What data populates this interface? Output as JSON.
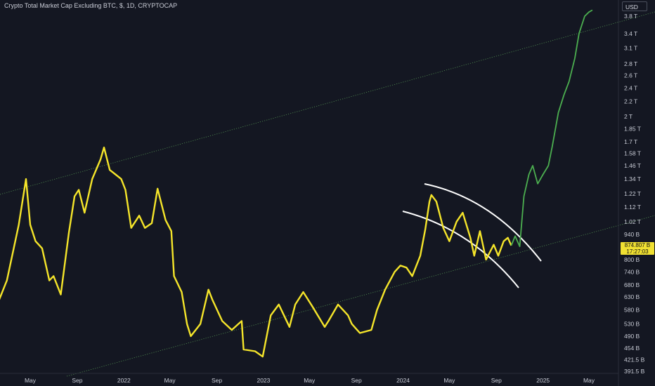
{
  "header": {
    "title": "Crypto Total Market Cap Excluding BTC, $, 1D, CRYPTOCAP",
    "currency": "USD"
  },
  "price_tag": {
    "value": "874.807 B",
    "countdown": "17:27:03"
  },
  "colors": {
    "background": "#141722",
    "price_yellow": "#f5e52a",
    "price_green": "#4caf50",
    "channel_line": "#ffffff",
    "trend_dotted": "#4a7a4a",
    "axis_text": "#c9ccd6"
  },
  "chart_data": {
    "type": "line",
    "title": "Crypto Total Market Cap Excluding BTC, $, 1D, CRYPTOCAP",
    "y_scale": "log",
    "y_unit": "USD",
    "y_ticks": [
      "3.8 T",
      "3.4 T",
      "3.1 T",
      "2.8 T",
      "2.6 T",
      "2.4 T",
      "2.2 T",
      "2 T",
      "1.85 T",
      "1.7 T",
      "1.58 T",
      "1.46 T",
      "1.34 T",
      "1.22 T",
      "1.12 T",
      "1.02 T",
      "940 B",
      "800 B",
      "740 B",
      "680 B",
      "630 B",
      "580 B",
      "530 B",
      "490 B",
      "454 B",
      "421.5 B",
      "391.5 B"
    ],
    "x_ticks": [
      "May",
      "Sep",
      "2022",
      "May",
      "Sep",
      "2023",
      "May",
      "Sep",
      "2024",
      "May",
      "Sep",
      "2025",
      "May"
    ],
    "series": [
      {
        "color": "#f5e52a",
        "points": [
          [
            "2021-02-01",
            590
          ],
          [
            "2021-03-01",
            700
          ],
          [
            "2021-04-01",
            1000
          ],
          [
            "2021-04-20",
            1340
          ],
          [
            "2021-05-01",
            1000
          ],
          [
            "2021-05-15",
            900
          ],
          [
            "2021-06-01",
            860
          ],
          [
            "2021-06-20",
            700
          ],
          [
            "2021-07-01",
            720
          ],
          [
            "2021-07-20",
            640
          ],
          [
            "2021-08-10",
            950
          ],
          [
            "2021-08-25",
            1200
          ],
          [
            "2021-09-05",
            1250
          ],
          [
            "2021-09-20",
            1080
          ],
          [
            "2021-10-10",
            1340
          ],
          [
            "2021-11-01",
            1520
          ],
          [
            "2021-11-10",
            1640
          ],
          [
            "2021-11-25",
            1420
          ],
          [
            "2021-12-10",
            1380
          ],
          [
            "2021-12-25",
            1340
          ],
          [
            "2022-01-05",
            1250
          ],
          [
            "2022-01-20",
            980
          ],
          [
            "2022-02-10",
            1060
          ],
          [
            "2022-02-25",
            980
          ],
          [
            "2022-03-15",
            1010
          ],
          [
            "2022-03-30",
            1260
          ],
          [
            "2022-04-20",
            1030
          ],
          [
            "2022-05-05",
            960
          ],
          [
            "2022-05-12",
            720
          ],
          [
            "2022-06-01",
            650
          ],
          [
            "2022-06-15",
            530
          ],
          [
            "2022-06-25",
            490
          ],
          [
            "2022-07-20",
            530
          ],
          [
            "2022-08-10",
            660
          ],
          [
            "2022-08-20",
            620
          ],
          [
            "2022-09-15",
            540
          ],
          [
            "2022-10-10",
            510
          ],
          [
            "2022-11-05",
            540
          ],
          [
            "2022-11-10",
            450
          ],
          [
            "2022-12-10",
            445
          ],
          [
            "2022-12-30",
            430
          ],
          [
            "2023-01-20",
            560
          ],
          [
            "2023-02-10",
            600
          ],
          [
            "2023-03-10",
            520
          ],
          [
            "2023-03-25",
            600
          ],
          [
            "2023-04-15",
            650
          ],
          [
            "2023-05-10",
            590
          ],
          [
            "2023-06-10",
            520
          ],
          [
            "2023-06-20",
            540
          ],
          [
            "2023-07-15",
            600
          ],
          [
            "2023-08-10",
            560
          ],
          [
            "2023-08-20",
            530
          ],
          [
            "2023-09-10",
            500
          ],
          [
            "2023-10-10",
            510
          ],
          [
            "2023-10-25",
            580
          ],
          [
            "2023-11-15",
            660
          ],
          [
            "2023-12-10",
            740
          ],
          [
            "2023-12-25",
            770
          ],
          [
            "2024-01-10",
            760
          ],
          [
            "2024-01-25",
            720
          ],
          [
            "2024-02-15",
            820
          ],
          [
            "2024-02-28",
            970
          ],
          [
            "2024-03-10",
            1160
          ],
          [
            "2024-03-15",
            1210
          ],
          [
            "2024-03-28",
            1160
          ],
          [
            "2024-04-15",
            980
          ],
          [
            "2024-05-01",
            900
          ],
          [
            "2024-05-20",
            1020
          ],
          [
            "2024-06-05",
            1080
          ],
          [
            "2024-06-25",
            920
          ],
          [
            "2024-07-05",
            820
          ],
          [
            "2024-07-20",
            960
          ],
          [
            "2024-08-05",
            800
          ],
          [
            "2024-08-25",
            880
          ],
          [
            "2024-09-06",
            820
          ],
          [
            "2024-09-20",
            900
          ],
          [
            "2024-10-01",
            920
          ],
          [
            "2024-10-10",
            875
          ]
        ]
      },
      {
        "color": "#4caf50",
        "points": [
          [
            "2024-10-10",
            875
          ],
          [
            "2024-10-20",
            930
          ],
          [
            "2024-11-01",
            870
          ],
          [
            "2024-11-12",
            1200
          ],
          [
            "2024-11-25",
            1380
          ],
          [
            "2024-12-05",
            1460
          ],
          [
            "2024-12-18",
            1300
          ],
          [
            "2025-01-01",
            1380
          ],
          [
            "2025-01-15",
            1460
          ],
          [
            "2025-01-25",
            1650
          ],
          [
            "2025-02-10",
            2050
          ],
          [
            "2025-02-25",
            2300
          ],
          [
            "2025-03-10",
            2500
          ],
          [
            "2025-03-25",
            2900
          ],
          [
            "2025-04-05",
            3400
          ],
          [
            "2025-04-20",
            3800
          ],
          [
            "2025-05-01",
            3900
          ],
          [
            "2025-05-10",
            3950
          ]
        ]
      }
    ],
    "grid": false
  }
}
